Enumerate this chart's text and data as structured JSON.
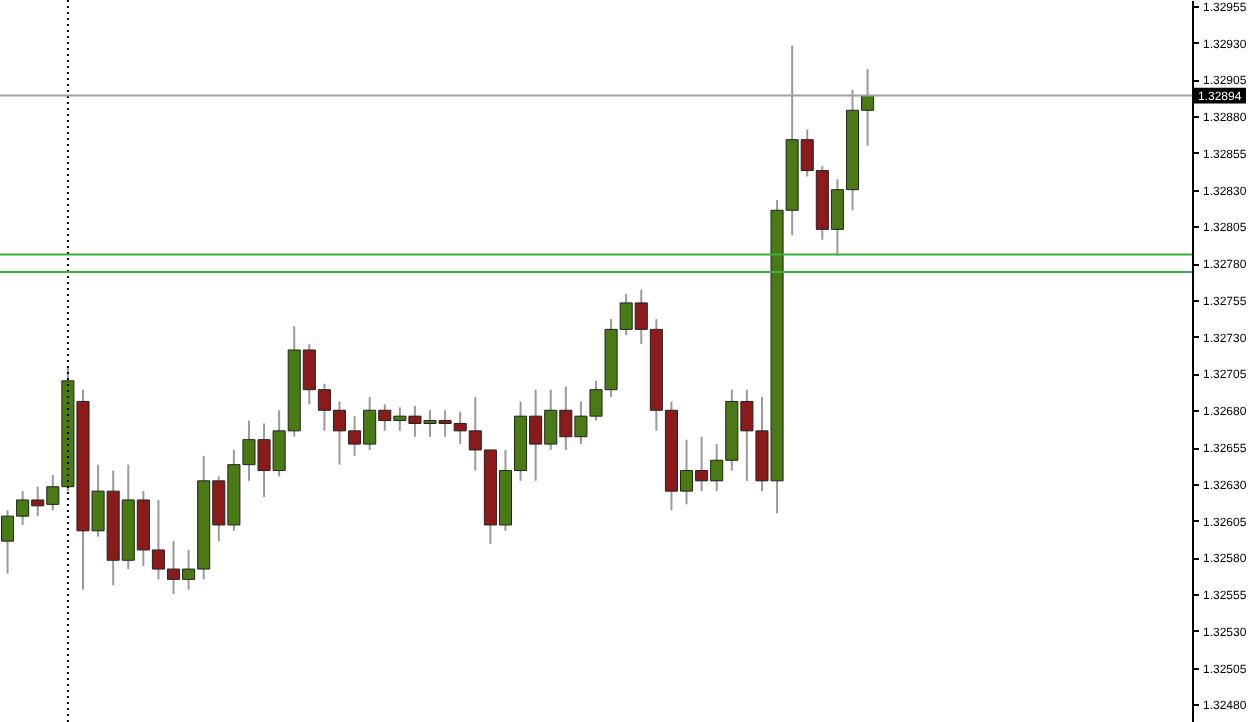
{
  "chart_data": {
    "type": "candlestick",
    "categories": [
      null,
      null,
      null,
      null,
      null,
      null,
      null,
      null,
      null,
      null,
      null,
      null,
      null,
      null,
      null,
      null,
      null,
      null,
      null,
      null,
      null,
      null,
      null,
      null,
      null,
      null,
      null,
      null,
      null,
      null,
      null,
      null,
      null,
      null,
      null,
      null,
      null,
      null,
      null,
      null,
      null,
      null,
      null,
      null,
      null,
      null,
      null,
      null,
      null,
      null,
      null,
      null,
      null,
      null,
      null,
      null,
      null,
      null,
      null,
      null,
      null,
      null,
      null,
      null,
      null,
      null,
      null,
      null,
      null,
      null,
      null,
      null,
      null,
      null,
      null,
      null,
      null,
      null,
      null
    ],
    "ohlc": [
      [
        1.32591,
        1.32612,
        1.32569,
        1.32608
      ],
      [
        1.32608,
        1.32625,
        1.32602,
        1.32619
      ],
      [
        1.32619,
        1.32628,
        1.32608,
        1.32615
      ],
      [
        1.32616,
        1.32636,
        1.32612,
        1.32628
      ],
      [
        1.32628,
        1.3271,
        1.32625,
        1.327
      ],
      [
        1.32686,
        1.32694,
        1.32558,
        1.32598
      ],
      [
        1.32598,
        1.32643,
        1.32594,
        1.32625
      ],
      [
        1.32625,
        1.32639,
        1.32561,
        1.32578
      ],
      [
        1.32578,
        1.32643,
        1.32572,
        1.32619
      ],
      [
        1.32619,
        1.32625,
        1.32574,
        1.32585
      ],
      [
        1.32585,
        1.32619,
        1.32565,
        1.32572
      ],
      [
        1.32572,
        1.32591,
        1.32555,
        1.32565
      ],
      [
        1.32565,
        1.32585,
        1.32558,
        1.32572
      ],
      [
        1.32572,
        1.32649,
        1.32565,
        1.32632
      ],
      [
        1.32632,
        1.32635,
        1.32591,
        1.32602
      ],
      [
        1.32602,
        1.32653,
        1.32598,
        1.32643
      ],
      [
        1.32643,
        1.32673,
        1.32632,
        1.3266
      ],
      [
        1.3266,
        1.32671,
        1.32621,
        1.32639
      ],
      [
        1.32639,
        1.3268,
        1.32635,
        1.32666
      ],
      [
        1.32666,
        1.32737,
        1.32662,
        1.32721
      ],
      [
        1.32721,
        1.32725,
        1.32684,
        1.32694
      ],
      [
        1.32694,
        1.32698,
        1.32666,
        1.3268
      ],
      [
        1.3268,
        1.32686,
        1.32643,
        1.32666
      ],
      [
        1.32666,
        1.32676,
        1.32649,
        1.32657
      ],
      [
        1.32657,
        1.32689,
        1.32653,
        1.3268
      ],
      [
        1.3268,
        1.32684,
        1.32666,
        1.32673
      ],
      [
        1.32673,
        1.32682,
        1.32666,
        1.32676
      ],
      [
        1.32676,
        1.32683,
        1.32662,
        1.32671
      ],
      [
        1.32671,
        1.3268,
        1.32662,
        1.32673
      ],
      [
        1.32673,
        1.3268,
        1.32662,
        1.32671
      ],
      [
        1.32671,
        1.32679,
        1.32657,
        1.32666
      ],
      [
        1.32666,
        1.32689,
        1.32639,
        1.32653
      ],
      [
        1.32653,
        1.32653,
        1.32589,
        1.32602
      ],
      [
        1.32602,
        1.32653,
        1.32598,
        1.32639
      ],
      [
        1.32639,
        1.32686,
        1.32632,
        1.32676
      ],
      [
        1.32676,
        1.32694,
        1.32632,
        1.32657
      ],
      [
        1.32657,
        1.32694,
        1.32653,
        1.3268
      ],
      [
        1.3268,
        1.32696,
        1.32653,
        1.32662
      ],
      [
        1.32662,
        1.32686,
        1.32657,
        1.32676
      ],
      [
        1.32676,
        1.327,
        1.32673,
        1.32694
      ],
      [
        1.32694,
        1.32742,
        1.32689,
        1.32735
      ],
      [
        1.32735,
        1.32759,
        1.32731,
        1.32753
      ],
      [
        1.32753,
        1.32762,
        1.32725,
        1.32735
      ],
      [
        1.32735,
        1.32742,
        1.32666,
        1.3268
      ],
      [
        1.3268,
        1.32686,
        1.32612,
        1.32625
      ],
      [
        1.32625,
        1.3266,
        1.32616,
        1.32639
      ],
      [
        1.32639,
        1.32662,
        1.32625,
        1.32632
      ],
      [
        1.32632,
        1.32657,
        1.32625,
        1.32646
      ],
      [
        1.32646,
        1.32694,
        1.32639,
        1.32686
      ],
      [
        1.32686,
        1.32694,
        1.32632,
        1.32666
      ],
      [
        1.32666,
        1.32689,
        1.32625,
        1.32632
      ],
      [
        1.32632,
        1.32823,
        1.3261,
        1.32816
      ],
      [
        1.32816,
        1.32928,
        1.32799,
        1.32864
      ],
      [
        1.32864,
        1.32871,
        1.32839,
        1.32843
      ],
      [
        1.32843,
        1.32846,
        1.32796,
        1.32803
      ],
      [
        1.32803,
        1.32837,
        1.32785,
        1.3283
      ],
      [
        1.3283,
        1.32898,
        1.32816,
        1.32884
      ],
      [
        1.32884,
        1.32912,
        1.3286,
        1.32894
      ],
      null,
      null,
      null,
      null,
      null,
      null,
      null,
      null,
      null,
      null,
      null,
      null,
      null,
      null,
      null,
      null,
      null,
      null,
      null,
      null,
      null
    ],
    "colors": [
      "#4a7a14",
      "#4a7a14",
      "#8b1a1a",
      "#4a7a14",
      "#4a7a14",
      "#8b1a1a",
      "#4a7a14",
      "#8b1a1a",
      "#4a7a14",
      "#8b1a1a",
      "#8b1a1a",
      "#8b1a1a",
      "#4a7a14",
      "#4a7a14",
      "#8b1a1a",
      "#4a7a14",
      "#4a7a14",
      "#8b1a1a",
      "#4a7a14",
      "#4a7a14",
      "#8b1a1a",
      "#8b1a1a",
      "#8b1a1a",
      "#8b1a1a",
      "#4a7a14",
      "#8b1a1a",
      "#4a7a14",
      "#8b1a1a",
      "#4a7a14",
      "#8b1a1a",
      "#8b1a1a",
      "#8b1a1a",
      "#8b1a1a",
      "#4a7a14",
      "#4a7a14",
      "#8b1a1a",
      "#4a7a14",
      "#8b1a1a",
      "#4a7a14",
      "#4a7a14",
      "#4a7a14",
      "#4a7a14",
      "#8b1a1a",
      "#8b1a1a",
      "#8b1a1a",
      "#4a7a14",
      "#8b1a1a",
      "#4a7a14",
      "#4a7a14",
      "#8b1a1a",
      "#8b1a1a",
      "#4a7a14",
      "#4a7a14",
      "#8b1a1a",
      "#8b1a1a",
      "#4a7a14",
      "#4a7a14",
      "#4a7a14",
      null,
      null,
      null,
      null,
      null,
      null,
      null,
      null,
      null,
      null,
      null,
      null,
      null,
      null,
      null,
      null,
      null,
      null,
      null,
      null,
      null
    ],
    "ylim": [
      1.32468,
      1.32959
    ],
    "yticks": [
      1.32955,
      {
        "value": 1.3293,
        "label": "1.32930"
      },
      1.32905,
      {
        "value": 1.3288,
        "label": "1.32880"
      },
      1.32855,
      {
        "value": 1.3283,
        "label": "1.32830"
      },
      1.32805,
      {
        "value": 1.3278,
        "label": "1.32780"
      },
      1.32755,
      {
        "value": 1.3273,
        "label": "1.32730"
      },
      1.32705,
      {
        "value": 1.3268,
        "label": "1.32680"
      },
      1.32655,
      {
        "value": 1.3263,
        "label": "1.32630"
      },
      1.32605,
      {
        "value": 1.3258,
        "label": "1.32580"
      },
      1.32555,
      {
        "value": 1.3253,
        "label": "1.32530"
      },
      1.32505,
      {
        "value": 1.3248,
        "label": "1.32480"
      }
    ],
    "ref_lines": [
      {
        "axis": "y",
        "value": 1.32894,
        "label": "1.32894",
        "color": "#a0a0a0",
        "line_style": "solid"
      },
      {
        "axis": "y",
        "value": 1.32786,
        "color": "#3cb03c",
        "line_style": "solid"
      },
      {
        "axis": "y",
        "value": 1.32774,
        "color": "#3cb03c",
        "line_style": "solid"
      }
    ],
    "grid": false,
    "tick_labels": "y"
  }
}
